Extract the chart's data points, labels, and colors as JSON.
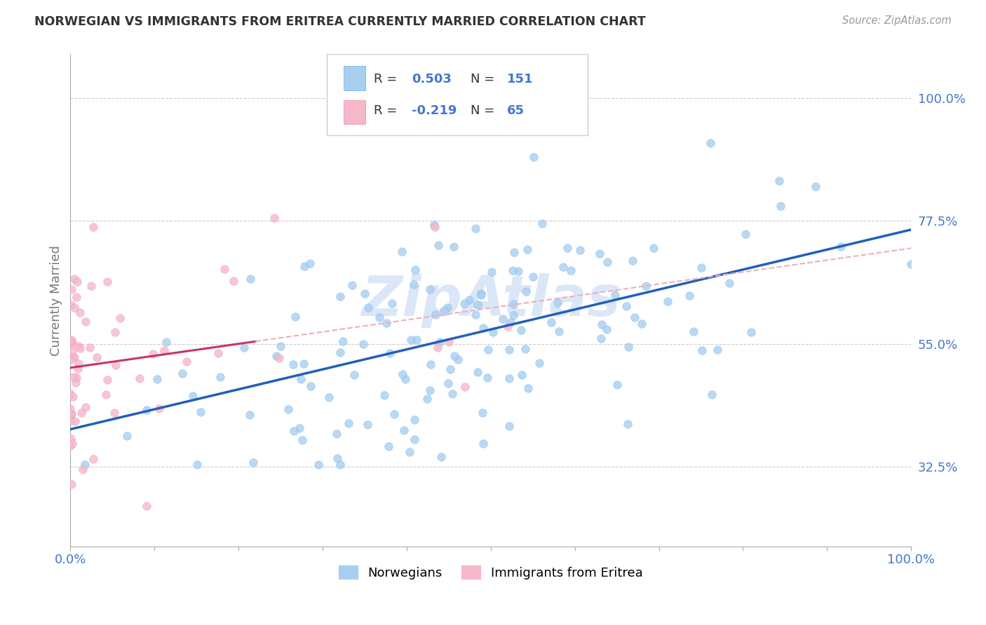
{
  "title": "NORWEGIAN VS IMMIGRANTS FROM ERITREA CURRENTLY MARRIED CORRELATION CHART",
  "source": "Source: ZipAtlas.com",
  "ylabel": "Currently Married",
  "xlim": [
    0.0,
    1.0
  ],
  "ylim": [
    0.18,
    1.08
  ],
  "yticks": [
    0.325,
    0.55,
    0.775,
    1.0
  ],
  "ytick_labels": [
    "32.5%",
    "55.0%",
    "77.5%",
    "100.0%"
  ],
  "xticks": [
    0.0,
    0.1,
    0.2,
    0.3,
    0.4,
    0.5,
    0.6,
    0.7,
    0.8,
    0.9,
    1.0
  ],
  "xtick_labels": [
    "0.0%",
    "",
    "",
    "",
    "",
    "",
    "",
    "",
    "",
    "",
    "100.0%"
  ],
  "norwegian_R": 0.503,
  "norwegian_N": 151,
  "eritrea_R": -0.219,
  "eritrea_N": 65,
  "norwegian_color": "#a8cff0",
  "norwegian_edge_color": "#6aaee8",
  "norwegian_line_color": "#2060bb",
  "eritrea_color": "#f5b8c8",
  "eritrea_edge_color": "#e888aa",
  "eritrea_line_color": "#cc3366",
  "eritrea_dash_color": "#e8b0c0",
  "watermark_color": "#ccddf5",
  "background_color": "#ffffff",
  "grid_color": "#cccccc",
  "title_color": "#333333",
  "axis_label_color": "#777777",
  "tick_color": "#4477cc",
  "legend_R_color": "#4477cc",
  "legend_text_color": "#333333"
}
